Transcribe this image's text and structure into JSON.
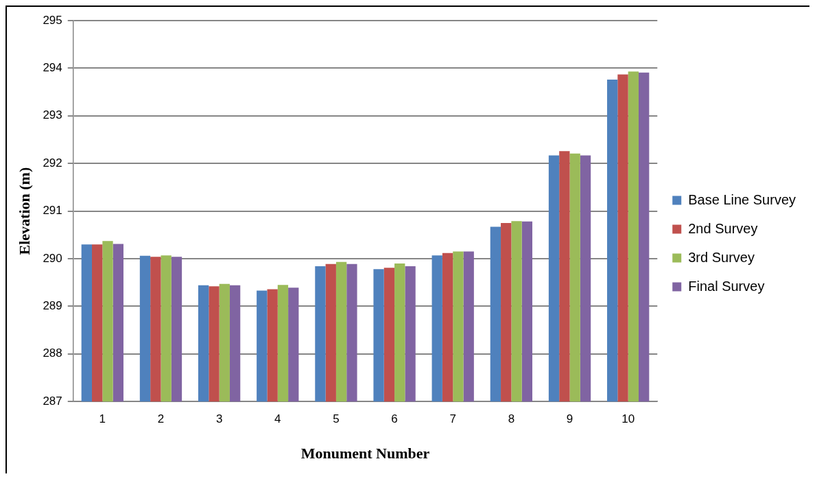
{
  "chart_data": {
    "type": "bar",
    "xlabel": "Monument Number",
    "ylabel": "Elevation (m)",
    "categories": [
      "1",
      "2",
      "3",
      "4",
      "5",
      "6",
      "7",
      "8",
      "9",
      "10"
    ],
    "series": [
      {
        "name": "Base Line Survey",
        "color": "#4f81bd",
        "values": [
          290.3,
          290.06,
          289.44,
          289.33,
          289.84,
          289.78,
          290.07,
          290.67,
          292.17,
          293.76
        ]
      },
      {
        "name": "2nd Survey",
        "color": "#c0504d",
        "values": [
          290.3,
          290.04,
          289.42,
          289.36,
          289.89,
          289.81,
          290.12,
          290.75,
          292.26,
          293.87
        ]
      },
      {
        "name": "3rd Survey",
        "color": "#9bbb59",
        "values": [
          290.37,
          290.07,
          289.47,
          289.45,
          289.93,
          289.9,
          290.15,
          290.79,
          292.21,
          293.93
        ]
      },
      {
        "name": "Final Survey",
        "color": "#8064a2",
        "values": [
          290.31,
          290.04,
          289.44,
          289.39,
          289.89,
          289.84,
          290.15,
          290.78,
          292.17,
          293.91
        ]
      }
    ],
    "ylim": [
      287,
      295
    ],
    "yticks": [
      287,
      288,
      289,
      290,
      291,
      292,
      293,
      294,
      295
    ],
    "grid": "y",
    "legend": "right"
  }
}
